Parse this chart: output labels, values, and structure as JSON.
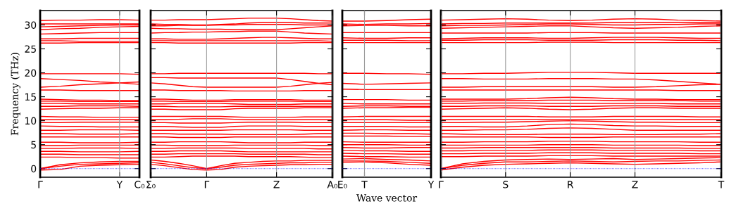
{
  "chart_data": [
    {
      "type": "line",
      "ylabel": "Frequency (THz)",
      "color": "#ff0000",
      "ylim": [
        -1.8,
        33
      ],
      "yticks": [
        0,
        5,
        10,
        15,
        20,
        25,
        30
      ],
      "categories": [
        "Γ",
        null,
        null,
        null,
        "Y",
        "C₀"
      ],
      "ref_lines": [
        {
          "axis": "y",
          "value": 0,
          "color": "#0000ff",
          "line_style": "dotted"
        },
        {
          "axis": "x",
          "value": "Y",
          "color": "#999999",
          "line_style": "solid"
        }
      ],
      "series": [
        {
          "values": [
            -0.3,
            -0.2,
            0.5,
            0.7,
            0.8,
            0.9
          ]
        },
        {
          "values": [
            0,
            0.5,
            0.9,
            1.0,
            1.1,
            1.2
          ]
        },
        {
          "values": [
            0,
            0.8,
            1.2,
            1.4,
            1.5,
            1.5
          ]
        },
        {
          "values": [
            2.4,
            2.4,
            2.3,
            2.3,
            2.2,
            2.2
          ]
        },
        {
          "values": [
            3.0,
            3.0,
            2.9,
            2.9,
            2.9,
            2.9
          ]
        },
        {
          "values": [
            3.6,
            3.6,
            3.5,
            3.5,
            3.5,
            3.6
          ]
        },
        {
          "values": [
            4.2,
            4.2,
            4.3,
            4.3,
            4.3,
            4.2
          ]
        },
        {
          "values": [
            4.8,
            4.8,
            4.9,
            4.9,
            4.9,
            4.9
          ]
        },
        {
          "values": [
            5.5,
            5.5,
            5.4,
            5.4,
            5.4,
            5.5
          ]
        },
        {
          "values": [
            6.6,
            6.6,
            6.6,
            6.6,
            6.6,
            6.6
          ]
        },
        {
          "values": [
            7.3,
            7.3,
            7.2,
            7.2,
            7.2,
            7.3
          ]
        },
        {
          "values": [
            8.0,
            8.0,
            8.1,
            8.1,
            8.1,
            8.0
          ]
        },
        {
          "values": [
            8.9,
            8.8,
            8.8,
            8.7,
            8.7,
            8.7
          ]
        },
        {
          "values": [
            9.6,
            9.6,
            9.7,
            9.7,
            9.7,
            9.7
          ]
        },
        {
          "values": [
            10.2,
            10.2,
            10.2,
            10.2,
            10.2,
            10.2
          ]
        },
        {
          "values": [
            10.9,
            10.8,
            10.8,
            10.7,
            10.7,
            10.7
          ]
        },
        {
          "values": [
            12.4,
            12.5,
            12.6,
            12.6,
            12.7,
            12.7
          ]
        },
        {
          "values": [
            13.0,
            13.0,
            13.1,
            13.1,
            13.1,
            13.0
          ]
        },
        {
          "values": [
            13.6,
            13.6,
            13.5,
            13.5,
            13.5,
            13.5
          ]
        },
        {
          "values": [
            14.1,
            14.1,
            14.0,
            14.0,
            14.0,
            14.0
          ]
        },
        {
          "values": [
            14.5,
            14.4,
            14.3,
            14.3,
            14.2,
            14.2
          ]
        },
        {
          "values": [
            16.4,
            16.4,
            16.3,
            16.3,
            16.3,
            16.3
          ]
        },
        {
          "values": [
            17.0,
            17.2,
            17.5,
            17.7,
            17.9,
            18.1
          ]
        },
        {
          "values": [
            18.8,
            18.6,
            18.4,
            18.1,
            17.9,
            17.6
          ]
        },
        {
          "values": [
            19.8,
            19.8,
            19.8,
            19.8,
            19.8,
            19.7
          ]
        },
        {
          "values": [
            26.2,
            26.2,
            26.3,
            26.3,
            26.3,
            26.3
          ]
        },
        {
          "values": [
            26.7,
            26.7,
            26.6,
            26.6,
            26.6,
            26.6
          ]
        },
        {
          "values": [
            27.1,
            27.1,
            27.2,
            27.2,
            27.2,
            27.2
          ]
        },
        {
          "values": [
            28.1,
            28.2,
            28.3,
            28.4,
            28.4,
            28.4
          ]
        },
        {
          "values": [
            29.0,
            29.2,
            29.3,
            29.5,
            29.6,
            29.7
          ]
        },
        {
          "values": [
            29.6,
            29.7,
            29.8,
            29.9,
            30.0,
            30.0
          ]
        },
        {
          "values": [
            30.2,
            30.2,
            30.2,
            30.2,
            30.2,
            30.2
          ]
        },
        {
          "values": [
            30.9,
            31.0,
            31.0,
            31.1,
            31.1,
            31.0
          ]
        }
      ]
    },
    {
      "type": "line",
      "color": "#ff0000",
      "grid": "x",
      "tick_labels": "x",
      "ylim": [
        -1.8,
        33
      ],
      "yticks": [
        0,
        5,
        10,
        15,
        20,
        25,
        30
      ],
      "categories": [
        "Σ₀",
        null,
        null,
        null,
        "Γ",
        null,
        null,
        null,
        null,
        "Z",
        null,
        null,
        null,
        "A₀"
      ],
      "ref_lines": [
        {
          "axis": "y",
          "value": 0,
          "color": "#0000ff",
          "line_style": "dotted"
        }
      ],
      "series": [
        {
          "values": [
            0.9,
            0.6,
            0.2,
            -0.2,
            -0.3,
            -0.2,
            0.3,
            0.5,
            0.6,
            0.7,
            0.8,
            0.8,
            0.9,
            0.9
          ]
        },
        {
          "values": [
            1.3,
            1.0,
            0.6,
            0.2,
            0,
            0.3,
            0.7,
            0.9,
            1.0,
            1.1,
            1.2,
            1.2,
            1.3,
            1.3
          ]
        },
        {
          "values": [
            1.8,
            1.5,
            1.1,
            0.6,
            0,
            0.6,
            1.1,
            1.3,
            1.5,
            1.6,
            1.6,
            1.7,
            1.7,
            1.7
          ]
        },
        {
          "values": [
            2.4,
            2.4,
            2.5,
            2.6,
            2.6,
            2.6,
            2.6,
            2.5,
            2.5,
            2.5,
            2.5,
            2.4,
            2.3,
            2.3
          ]
        },
        {
          "values": [
            3.0,
            3.0,
            3.1,
            3.1,
            3.1,
            3.1,
            3.1,
            3.0,
            3.0,
            3.0,
            3.0,
            3.0,
            2.9,
            2.9
          ]
        },
        {
          "values": [
            3.6,
            3.6,
            3.7,
            3.7,
            3.7,
            3.7,
            3.6,
            3.5,
            3.5,
            3.5,
            3.5,
            3.5,
            3.5,
            3.5
          ]
        },
        {
          "values": [
            4.2,
            4.2,
            4.3,
            4.3,
            4.3,
            4.3,
            4.3,
            4.2,
            4.2,
            4.2,
            4.2,
            4.2,
            4.1,
            4.1
          ]
        },
        {
          "values": [
            4.9,
            4.9,
            4.8,
            4.8,
            4.8,
            4.8,
            4.9,
            4.9,
            4.9,
            4.9,
            4.9,
            4.9,
            4.8,
            4.8
          ]
        },
        {
          "values": [
            5.5,
            5.5,
            5.6,
            5.6,
            5.6,
            5.6,
            5.5,
            5.4,
            5.4,
            5.4,
            5.4,
            5.5,
            5.5,
            5.5
          ]
        },
        {
          "values": [
            6.6,
            6.6,
            6.5,
            6.5,
            6.5,
            6.5,
            6.6,
            6.6,
            6.6,
            6.6,
            6.6,
            6.6,
            6.6,
            6.6
          ]
        },
        {
          "values": [
            7.3,
            7.3,
            7.2,
            7.2,
            7.2,
            7.2,
            7.1,
            7.1,
            7.1,
            7.1,
            7.1,
            7.2,
            7.3,
            7.3
          ]
        },
        {
          "values": [
            8.0,
            8.0,
            8.0,
            8.0,
            8.0,
            8.0,
            8.1,
            8.1,
            8.1,
            8.1,
            8.1,
            8.0,
            8.0,
            8.0
          ]
        },
        {
          "values": [
            8.8,
            8.8,
            8.7,
            8.6,
            8.6,
            8.6,
            8.8,
            8.9,
            8.9,
            8.9,
            8.9,
            8.8,
            8.8,
            8.8
          ]
        },
        {
          "values": [
            9.6,
            9.6,
            9.5,
            9.5,
            9.5,
            9.5,
            9.6,
            9.7,
            9.7,
            9.7,
            9.7,
            9.6,
            9.6,
            9.6
          ]
        },
        {
          "values": [
            10.2,
            10.2,
            10.3,
            10.4,
            10.4,
            10.4,
            10.3,
            10.2,
            10.2,
            10.2,
            10.2,
            10.2,
            10.2,
            10.2
          ]
        },
        {
          "values": [
            10.9,
            10.9,
            10.9,
            10.9,
            10.9,
            10.9,
            10.8,
            10.7,
            10.7,
            10.7,
            10.7,
            10.8,
            10.8,
            10.8
          ]
        },
        {
          "values": [
            12.4,
            12.4,
            12.3,
            12.3,
            12.3,
            12.3,
            12.5,
            12.6,
            12.6,
            12.6,
            12.6,
            12.7,
            12.7,
            12.7
          ]
        },
        {
          "values": [
            13.0,
            13.0,
            12.9,
            12.9,
            12.9,
            12.9,
            13.0,
            13.0,
            13.0,
            13.0,
            13.0,
            13.0,
            13.0,
            13.0
          ]
        },
        {
          "values": [
            13.5,
            13.5,
            13.6,
            13.6,
            13.6,
            13.6,
            13.5,
            13.4,
            13.4,
            13.4,
            13.4,
            13.5,
            13.5,
            13.5
          ]
        },
        {
          "values": [
            14.1,
            14.1,
            14.0,
            14.0,
            14.0,
            14.0,
            14.1,
            14.1,
            14.1,
            14.1,
            14.1,
            14.0,
            14.0,
            14.0
          ]
        },
        {
          "values": [
            14.5,
            14.5,
            14.4,
            14.3,
            14.3,
            14.3,
            14.4,
            14.4,
            14.4,
            14.4,
            14.4,
            14.3,
            14.3,
            14.3
          ]
        },
        {
          "values": [
            16.4,
            16.4,
            16.3,
            16.3,
            16.3,
            16.3,
            16.2,
            16.2,
            16.2,
            16.2,
            16.2,
            16.3,
            16.3,
            16.3
          ]
        },
        {
          "values": [
            17.9,
            17.7,
            17.4,
            17.1,
            17.0,
            17.0,
            17.0,
            17.0,
            17.0,
            17.0,
            17.2,
            17.5,
            17.8,
            18.0
          ]
        },
        {
          "values": [
            19.0,
            19.0,
            18.9,
            18.9,
            18.9,
            18.9,
            18.9,
            18.9,
            18.9,
            18.9,
            18.6,
            18.2,
            17.8,
            17.5
          ]
        },
        {
          "values": [
            19.8,
            19.8,
            19.9,
            19.9,
            19.9,
            19.9,
            19.9,
            19.9,
            19.9,
            19.9,
            19.9,
            19.9,
            19.8,
            19.8
          ]
        },
        {
          "values": [
            26.3,
            26.3,
            26.2,
            26.2,
            26.2,
            26.2,
            26.2,
            26.2,
            26.2,
            26.2,
            26.2,
            26.3,
            26.3,
            26.3
          ]
        },
        {
          "values": [
            26.7,
            26.7,
            26.7,
            26.7,
            26.7,
            26.7,
            26.7,
            26.7,
            26.7,
            26.7,
            26.7,
            26.7,
            26.7,
            26.6
          ]
        },
        {
          "values": [
            27.1,
            27.1,
            27.0,
            27.0,
            27.0,
            27.1,
            27.2,
            27.3,
            27.4,
            27.4,
            27.3,
            27.2,
            27.1,
            27.1
          ]
        },
        {
          "values": [
            28.3,
            28.4,
            28.4,
            28.5,
            28.5,
            28.6,
            28.6,
            28.7,
            28.7,
            28.7,
            28.5,
            28.3,
            28.2,
            28.1
          ]
        },
        {
          "values": [
            29.3,
            29.2,
            29.2,
            29.1,
            29.1,
            29.1,
            29.0,
            29.0,
            29.0,
            29.0,
            29.2,
            29.4,
            29.6,
            29.8
          ]
        },
        {
          "values": [
            29.8,
            29.8,
            29.9,
            29.9,
            29.9,
            30.0,
            30.0,
            30.1,
            30.1,
            30.1,
            30.1,
            30.0,
            30.0,
            30.0
          ]
        },
        {
          "values": [
            30.2,
            30.1,
            30.1,
            30.0,
            30.0,
            30.1,
            30.2,
            30.4,
            30.5,
            30.5,
            30.5,
            30.4,
            30.4,
            30.4
          ]
        },
        {
          "values": [
            31.0,
            31.0,
            31.1,
            31.1,
            31.1,
            31.2,
            31.3,
            31.4,
            31.4,
            31.4,
            31.3,
            31.1,
            30.9,
            30.8
          ]
        }
      ]
    },
    {
      "type": "line",
      "xlabel": "Wave vector",
      "color": "#ff0000",
      "tick_labels": "x",
      "ylim": [
        -1.8,
        33
      ],
      "yticks": [
        0,
        5,
        10,
        15,
        20,
        25,
        30
      ],
      "categories": [
        "E₀",
        "T",
        null,
        null,
        "Y"
      ],
      "ref_lines": [
        {
          "axis": "y",
          "value": 0,
          "color": "#0000ff",
          "line_style": "dotted"
        },
        {
          "axis": "x",
          "value": "T",
          "color": "#999999",
          "line_style": "solid"
        }
      ],
      "series": [
        {
          "values": [
            1.3,
            1.4,
            1.2,
            0.9,
            0.7
          ]
        },
        {
          "values": [
            1.6,
            1.6,
            1.5,
            1.3,
            1.1
          ]
        },
        {
          "values": [
            2.0,
            2.1,
            1.9,
            1.8,
            1.6
          ]
        },
        {
          "values": [
            2.6,
            2.5,
            2.5,
            2.4,
            2.4
          ]
        },
        {
          "values": [
            3.2,
            3.1,
            3.1,
            3.0,
            3.0
          ]
        },
        {
          "values": [
            3.8,
            3.7,
            3.7,
            3.6,
            3.6
          ]
        },
        {
          "values": [
            4.4,
            4.3,
            4.3,
            4.4,
            4.4
          ]
        },
        {
          "values": [
            5.0,
            5.0,
            5.0,
            4.9,
            4.9
          ]
        },
        {
          "values": [
            5.6,
            5.5,
            5.5,
            5.5,
            5.5
          ]
        },
        {
          "values": [
            6.8,
            6.8,
            6.8,
            6.7,
            6.7
          ]
        },
        {
          "values": [
            7.4,
            7.4,
            7.3,
            7.3,
            7.2
          ]
        },
        {
          "values": [
            8.0,
            8.1,
            8.1,
            8.0,
            8.0
          ]
        },
        {
          "values": [
            8.8,
            8.8,
            8.8,
            8.7,
            8.7
          ]
        },
        {
          "values": [
            9.6,
            9.6,
            9.6,
            9.6,
            9.6
          ]
        },
        {
          "values": [
            10.2,
            10.2,
            10.2,
            10.1,
            10.1
          ]
        },
        {
          "values": [
            10.8,
            10.9,
            10.9,
            10.9,
            10.9
          ]
        },
        {
          "values": [
            12.6,
            12.7,
            12.7,
            12.8,
            12.8
          ]
        },
        {
          "values": [
            13.0,
            13.1,
            13.1,
            13.0,
            13.0
          ]
        },
        {
          "values": [
            13.6,
            13.5,
            13.5,
            13.5,
            13.5
          ]
        },
        {
          "values": [
            14.4,
            14.4,
            14.4,
            14.3,
            14.3
          ]
        },
        {
          "values": [
            16.6,
            16.5,
            16.5,
            16.5,
            16.5
          ]
        },
        {
          "values": [
            17.8,
            17.6,
            17.7,
            17.8,
            17.9
          ]
        },
        {
          "values": [
            19.9,
            19.9,
            19.8,
            19.8,
            19.7
          ]
        },
        {
          "values": [
            26.3,
            26.3,
            26.3,
            26.3,
            26.3
          ]
        },
        {
          "values": [
            26.8,
            26.8,
            26.8,
            26.7,
            26.7
          ]
        },
        {
          "values": [
            27.3,
            27.2,
            27.2,
            27.3,
            27.3
          ]
        },
        {
          "values": [
            28.4,
            28.4,
            28.4,
            28.4,
            28.4
          ]
        },
        {
          "values": [
            29.8,
            29.9,
            29.9,
            29.8,
            29.8
          ]
        },
        {
          "values": [
            30.2,
            30.1,
            30.2,
            30.2,
            30.3
          ]
        },
        {
          "values": [
            30.8,
            30.8,
            30.9,
            31.1,
            31.2
          ]
        }
      ]
    },
    {
      "type": "line",
      "color": "#ff0000",
      "grid": "x",
      "tick_labels": "x",
      "ylim": [
        -1.8,
        33
      ],
      "yticks": [
        0,
        5,
        10,
        15,
        20,
        25,
        30
      ],
      "categories": [
        "Γ",
        null,
        null,
        "S",
        null,
        null,
        "R",
        null,
        null,
        "Z",
        null,
        null,
        null,
        "T"
      ],
      "ref_lines": [
        {
          "axis": "y",
          "value": 0,
          "color": "#0000ff",
          "line_style": "dotted"
        }
      ],
      "series": [
        {
          "values": [
            -0.3,
            0.3,
            0.7,
            0.9,
            1.0,
            1.1,
            1.2,
            1.1,
            1.0,
            0.9,
            1.0,
            1.1,
            1.2,
            1.4
          ]
        },
        {
          "values": [
            0,
            0.7,
            1.1,
            1.4,
            1.4,
            1.5,
            1.6,
            1.5,
            1.4,
            1.5,
            1.6,
            1.6,
            1.7,
            1.8
          ]
        },
        {
          "values": [
            0,
            1.0,
            1.5,
            1.8,
            1.9,
            2.0,
            1.9,
            2.0,
            2.1,
            1.9,
            2.0,
            2.1,
            2.2,
            2.3
          ]
        },
        {
          "values": [
            2.5,
            2.5,
            2.6,
            2.6,
            2.6,
            2.7,
            2.7,
            2.7,
            2.6,
            2.6,
            2.6,
            2.6,
            2.6,
            2.6
          ]
        },
        {
          "values": [
            3.1,
            3.1,
            3.2,
            3.2,
            3.2,
            3.3,
            3.3,
            3.3,
            3.2,
            3.2,
            3.2,
            3.2,
            3.1,
            3.1
          ]
        },
        {
          "values": [
            3.7,
            3.7,
            3.8,
            3.8,
            3.8,
            3.9,
            3.9,
            3.9,
            3.8,
            3.8,
            3.8,
            3.8,
            3.7,
            3.7
          ]
        },
        {
          "values": [
            4.3,
            4.3,
            4.4,
            4.4,
            4.4,
            4.4,
            4.4,
            4.4,
            4.3,
            4.3,
            4.3,
            4.3,
            4.2,
            4.2
          ]
        },
        {
          "values": [
            4.9,
            4.9,
            4.9,
            4.9,
            4.9,
            5.0,
            5.0,
            5.0,
            4.9,
            4.9,
            4.9,
            4.9,
            4.8,
            4.8
          ]
        },
        {
          "values": [
            5.5,
            5.5,
            5.6,
            5.6,
            5.6,
            5.7,
            5.7,
            5.7,
            5.6,
            5.6,
            5.6,
            5.6,
            5.5,
            5.5
          ]
        },
        {
          "values": [
            6.6,
            6.6,
            6.6,
            6.6,
            6.6,
            6.5,
            6.5,
            6.5,
            6.6,
            6.6,
            6.6,
            6.6,
            6.6,
            6.6
          ]
        },
        {
          "values": [
            7.3,
            7.2,
            7.1,
            7.1,
            7.1,
            7.2,
            7.2,
            7.2,
            7.1,
            7.1,
            7.1,
            7.2,
            7.2,
            7.3
          ]
        },
        {
          "values": [
            8.0,
            8.0,
            8.1,
            8.1,
            8.2,
            8.4,
            8.5,
            8.4,
            8.2,
            8.0,
            8.0,
            8.0,
            8.0,
            8.0
          ]
        },
        {
          "values": [
            8.8,
            8.8,
            8.7,
            8.7,
            8.9,
            9.2,
            9.3,
            9.2,
            9.0,
            8.9,
            8.9,
            8.8,
            8.8,
            8.8
          ]
        },
        {
          "values": [
            9.6,
            9.6,
            9.7,
            9.7,
            9.8,
            9.9,
            10.0,
            9.9,
            9.8,
            9.7,
            9.7,
            9.6,
            9.6,
            9.6
          ]
        },
        {
          "values": [
            10.2,
            10.2,
            10.3,
            10.3,
            10.3,
            10.3,
            10.3,
            10.3,
            10.3,
            10.3,
            10.3,
            10.2,
            10.2,
            10.2
          ]
        },
        {
          "values": [
            10.9,
            10.9,
            10.9,
            10.9,
            10.9,
            10.8,
            10.8,
            10.8,
            10.9,
            10.9,
            10.9,
            10.9,
            10.8,
            10.8
          ]
        },
        {
          "values": [
            12.4,
            12.5,
            12.6,
            12.7,
            12.6,
            12.4,
            12.3,
            12.4,
            12.6,
            12.7,
            12.7,
            12.6,
            12.6,
            12.6
          ]
        },
        {
          "values": [
            13.0,
            13.0,
            13.1,
            13.1,
            13.1,
            13.0,
            13.0,
            13.0,
            13.1,
            13.1,
            13.1,
            13.0,
            13.0,
            13.0
          ]
        },
        {
          "values": [
            13.6,
            13.6,
            13.7,
            13.7,
            13.7,
            13.6,
            13.6,
            13.6,
            13.6,
            13.6,
            13.6,
            13.5,
            13.5,
            13.5
          ]
        },
        {
          "values": [
            14.1,
            14.1,
            14.2,
            14.2,
            14.2,
            14.3,
            14.3,
            14.3,
            14.2,
            14.2,
            14.2,
            14.2,
            14.1,
            14.1
          ]
        },
        {
          "values": [
            14.5,
            14.5,
            14.5,
            14.5,
            14.6,
            14.8,
            14.9,
            14.8,
            14.6,
            14.5,
            14.5,
            14.4,
            14.4,
            14.4
          ]
        },
        {
          "values": [
            16.4,
            16.4,
            16.4,
            16.4,
            16.4,
            16.4,
            16.4,
            16.4,
            16.4,
            16.4,
            16.4,
            16.3,
            16.3,
            16.3
          ]
        },
        {
          "values": [
            17.0,
            17.0,
            17.1,
            17.1,
            17.1,
            17.1,
            17.1,
            17.1,
            17.0,
            17.0,
            17.1,
            17.3,
            17.5,
            17.6
          ]
        },
        {
          "values": [
            18.8,
            18.8,
            18.7,
            18.7,
            18.7,
            18.8,
            18.8,
            18.8,
            18.7,
            18.7,
            18.5,
            18.2,
            17.9,
            17.6
          ]
        },
        {
          "values": [
            19.8,
            19.8,
            19.9,
            19.9,
            20.0,
            20.1,
            20.1,
            20.1,
            20.0,
            19.9,
            19.9,
            19.9,
            19.9,
            19.9
          ]
        },
        {
          "values": [
            26.3,
            26.3,
            26.3,
            26.3,
            26.3,
            26.4,
            26.4,
            26.4,
            26.3,
            26.3,
            26.3,
            26.3,
            26.3,
            26.3
          ]
        },
        {
          "values": [
            26.8,
            26.8,
            26.9,
            26.9,
            26.9,
            26.8,
            26.8,
            26.8,
            26.9,
            26.9,
            26.9,
            26.8,
            26.8,
            26.7
          ]
        },
        {
          "values": [
            27.1,
            27.2,
            27.3,
            27.3,
            27.3,
            27.2,
            27.2,
            27.3,
            27.4,
            27.4,
            27.4,
            27.3,
            27.2,
            27.2
          ]
        },
        {
          "values": [
            28.3,
            28.3,
            28.3,
            28.3,
            28.3,
            28.4,
            28.4,
            28.4,
            28.3,
            28.3,
            28.3,
            28.3,
            28.3,
            28.3
          ]
        },
        {
          "values": [
            29.3,
            29.4,
            29.5,
            29.6,
            29.7,
            29.8,
            29.8,
            29.6,
            29.4,
            29.3,
            29.4,
            29.5,
            29.7,
            29.8
          ]
        },
        {
          "values": [
            29.8,
            29.9,
            29.9,
            30.0,
            30.1,
            30.2,
            30.2,
            30.1,
            30.0,
            30.0,
            30.1,
            30.1,
            30.2,
            30.2
          ]
        },
        {
          "values": [
            30.2,
            30.3,
            30.3,
            30.4,
            30.4,
            30.4,
            30.4,
            30.4,
            30.5,
            30.5,
            30.5,
            30.5,
            30.5,
            30.5
          ]
        },
        {
          "values": [
            31.0,
            31.1,
            31.2,
            31.3,
            31.2,
            31.0,
            30.9,
            31.0,
            31.2,
            31.3,
            31.2,
            31.0,
            30.9,
            30.8
          ]
        }
      ]
    }
  ]
}
